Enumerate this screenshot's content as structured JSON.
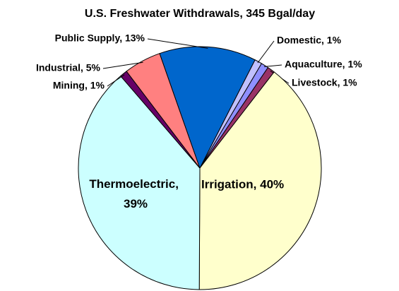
{
  "chart_data": {
    "type": "pie",
    "title": "U.S. Freshwater Withdrawals, 345 Bgal/day",
    "labels": [
      "Domestic, 1%",
      "Aquaculture, 1%",
      "Livestock, 1%",
      "Irrigation, 40%",
      "Thermoelectric,\n39%",
      "Mining,  1%",
      "Industrial, 5%",
      "Public Supply, 13%"
    ],
    "values": [
      1,
      1,
      1,
      40,
      39,
      1,
      5,
      13
    ],
    "colors": [
      "#c0c0ff",
      "#8f8fff",
      "#993366",
      "#ffffcc",
      "#ccffff",
      "#660066",
      "#ff8080",
      "#0066cc"
    ]
  }
}
